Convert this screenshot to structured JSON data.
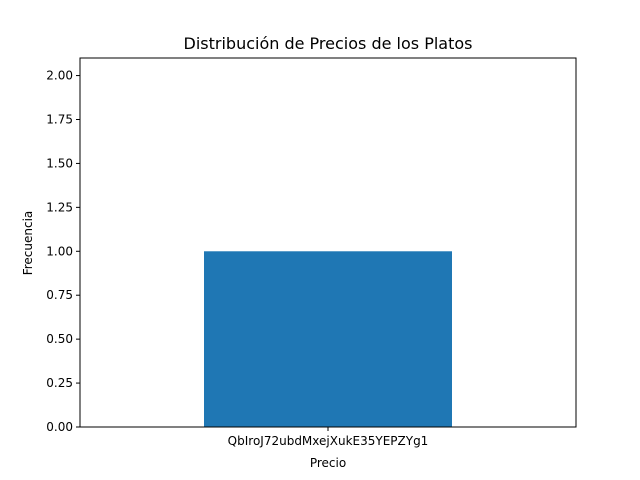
{
  "chart_data": {
    "type": "bar",
    "title": "Distribución de Precios de los Platos",
    "xlabel": "Precio",
    "ylabel": "Frecuencia",
    "categories": [
      "QbIroJ72ubdMxejXukE35YEPZYg1"
    ],
    "values": [
      1.0
    ],
    "ylim": [
      0,
      2.1
    ],
    "yticks": [
      "0.00",
      "0.25",
      "0.50",
      "0.75",
      "1.00",
      "1.25",
      "1.50",
      "1.75",
      "2.00"
    ],
    "bar_color": "#1f77b4",
    "grid": false,
    "legend": "none"
  }
}
